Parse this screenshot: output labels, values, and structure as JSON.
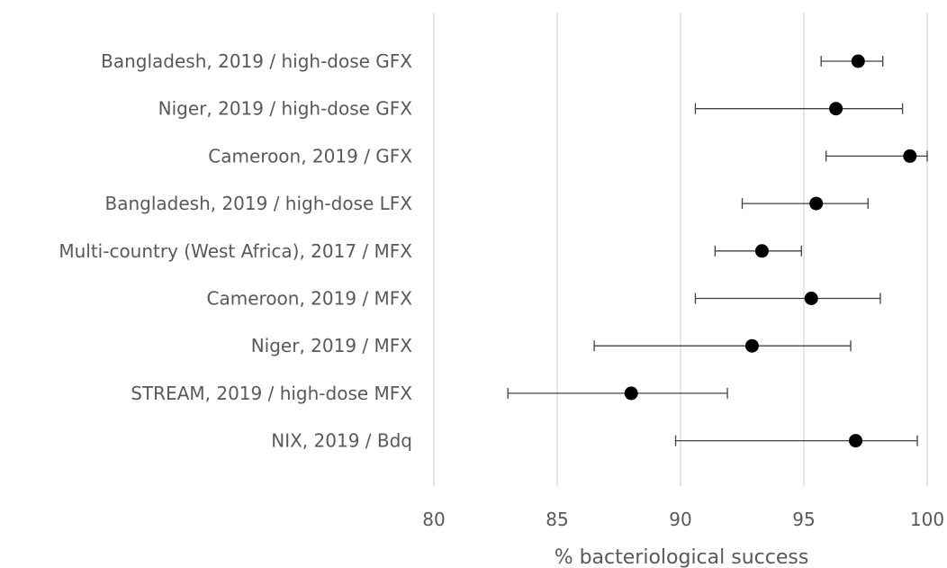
{
  "chart_data": {
    "type": "scatter",
    "subtype": "forest-plot-with-error-bars",
    "categories": [
      "Bangladesh, 2019 / high-dose GFX",
      "Niger, 2019 / high-dose GFX",
      "Cameroon, 2019 / GFX",
      "Bangladesh, 2019 / high-dose LFX",
      "Multi-country (West Africa), 2017 / MFX",
      "Cameroon, 2019 / MFX",
      "Niger, 2019 / MFX",
      "STREAM, 2019 / high-dose MFX",
      "NIX, 2019 / Bdq"
    ],
    "series": [
      {
        "values": [
          97.2,
          96.3,
          99.3,
          95.5,
          93.3,
          95.3,
          92.9,
          88.0,
          97.1
        ],
        "ci_lower": [
          95.7,
          90.6,
          95.9,
          92.5,
          91.4,
          90.6,
          86.5,
          83.0,
          89.8
        ],
        "ci_upper": [
          98.2,
          99.0,
          100.0,
          97.6,
          94.9,
          98.1,
          96.9,
          91.9,
          99.6
        ]
      }
    ],
    "x_ticks": [
      "80",
      "85",
      "90",
      "95",
      "100"
    ],
    "xlim": [
      80,
      100
    ],
    "xlabel": "% bacteriological success",
    "ylabel": "",
    "title": "",
    "grid": "vertical",
    "legend": "none",
    "colors": {
      "marker": "#000000",
      "error_bar": "#404040",
      "grid": "#d9d9d9",
      "text": "#595959"
    }
  }
}
